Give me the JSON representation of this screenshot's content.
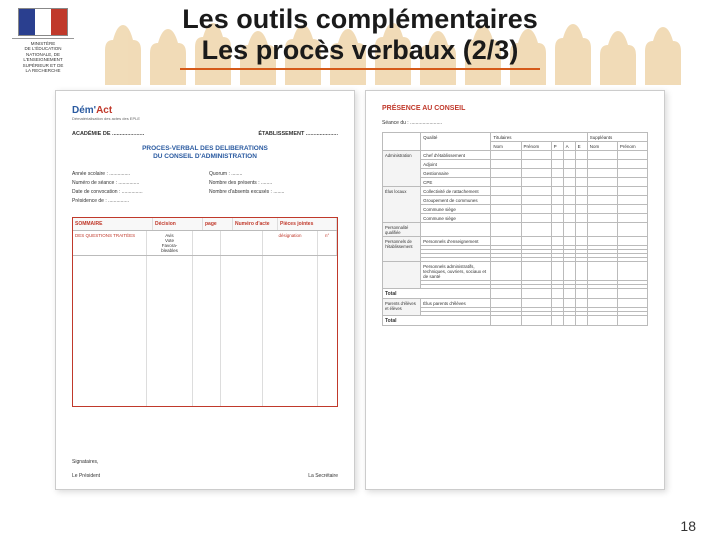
{
  "header": {
    "logo": {
      "flag_colors": [
        "#2a3f8f",
        "#ffffff",
        "#c0392b"
      ],
      "ministry_lines": [
        "MINISTÈRE",
        "DE L'ÉDUCATION",
        "NATIONALE, DE",
        "L'ENSEIGNEMENT",
        "SUPÉRIEUR ET DE",
        "LA RECHERCHE"
      ]
    },
    "title_line1": "Les outils complémentaires",
    "title_line2": "Les procès verbaux (2/3)",
    "title_color": "#1a1a1a",
    "underline_color": "#d55a1a",
    "silhouette_color": "#f0d8b0"
  },
  "doc1": {
    "logo_text_blue": "Dém'",
    "logo_text_red": "Act",
    "logo_sub": "Dématérialisation des actes des EPLE",
    "academie": "ACADÉMIE DE",
    "etablissement": "ÉTABLISSEMENT",
    "proc_title_l1": "PROCES-VERBAL DES DELIBERATIONS",
    "proc_title_l2": "DU CONSEIL D'ADMINISTRATION",
    "left_fields": {
      "annee": "Année scolaire :",
      "numero": "Numéro de séance :",
      "date": "Date de convocation :",
      "presidence": "Présidence de :"
    },
    "right_fields": {
      "quorum": "Quorum :",
      "presents": "Nombre des présents :",
      "absents": "Nombre d'absents excusés :"
    },
    "table_headers": {
      "sommaire": "SOMMAIRE",
      "decision": "Décision",
      "page": "page",
      "numero": "Numéro d'acte",
      "pieces": "Pièces jointes",
      "desig": "désignation",
      "n": "n°",
      "questions": "DES QUESTIONS TRAITÉES"
    },
    "decision_opts": [
      "Avis",
      "Vote",
      "Favora-",
      "bleables"
    ],
    "signatures": {
      "top": "Signataires,",
      "president": "Le Président",
      "secretaire": "La Secrétaire"
    },
    "border_color": "#c0392b"
  },
  "doc2": {
    "title": "PRÉSENCE AU CONSEIL",
    "seance": "Séance du :",
    "headers": {
      "qualite": "Qualité",
      "titulaires": "Titulaires",
      "suppleants": "Suppléants",
      "nom": "Nom",
      "prenom": "Prénom",
      "p": "P",
      "a": "A",
      "e": "E"
    },
    "sections": [
      {
        "label": "Administration",
        "rows": [
          "Chef d'établissement",
          "Adjoint",
          "Gestionnaire",
          "CPE"
        ]
      },
      {
        "label": "Élus locaux",
        "rows": [
          "Collectivité de rattachement",
          "Groupement de communes",
          "Commune siège",
          "Commune siège"
        ]
      },
      {
        "label": "Personnalité qualifiée",
        "rows": [
          ""
        ]
      },
      {
        "label": "Personnels de l'établissement",
        "rows": [
          "Personnels d'enseignement",
          "",
          "",
          "",
          ""
        ]
      },
      {
        "label": "",
        "rows": [
          "Personnels administratifs, techniques, ouvriers, sociaux et de santé",
          "",
          ""
        ]
      },
      {
        "label": "Total",
        "rows": [],
        "is_total": true
      },
      {
        "label": "Parents d'élèves et élèves",
        "rows": [
          "Élus parents d'élèves",
          "",
          ""
        ]
      },
      {
        "label": "Total",
        "rows": [],
        "is_total": true
      }
    ]
  },
  "page_number": "18"
}
